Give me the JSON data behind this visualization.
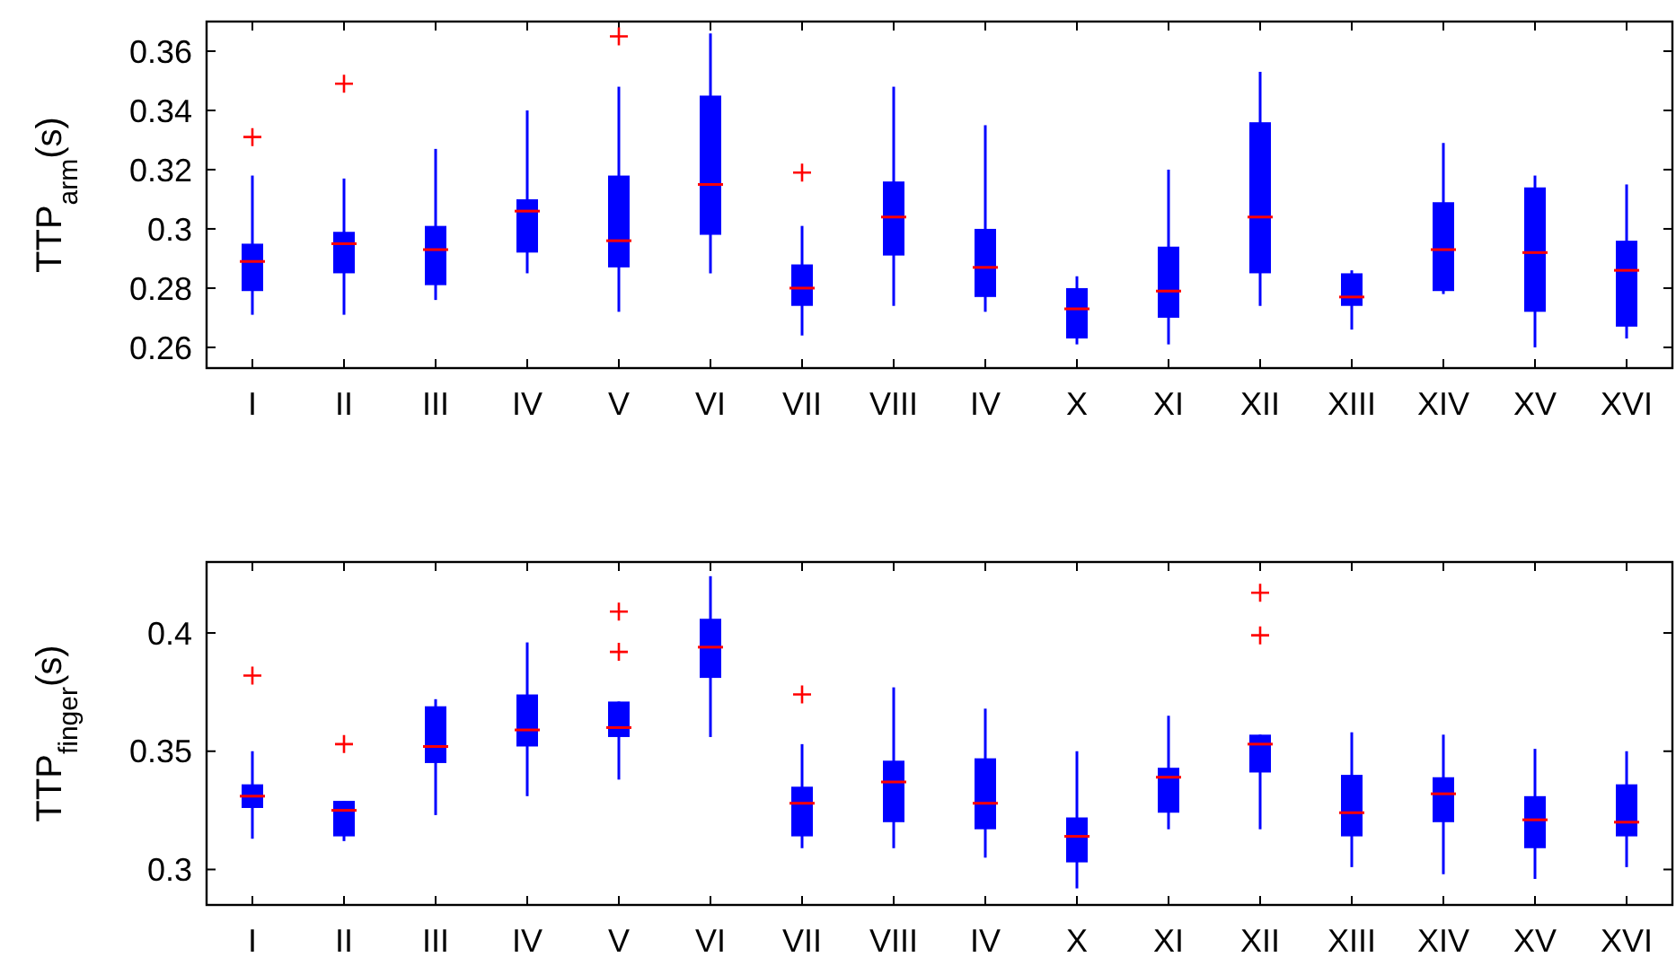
{
  "chart_data": [
    {
      "type": "box",
      "ylabel": "TTP$_{arm}$(s)",
      "categories": [
        "I",
        "II",
        "III",
        "IV",
        "V",
        "VI",
        "VII",
        "VIII",
        "IV",
        "X",
        "XI",
        "XII",
        "XIII",
        "XIV",
        "XV",
        "XVI"
      ],
      "ylim": [
        0.253,
        0.37
      ],
      "yticks": [
        {
          "value": 0.26,
          "label": "0.26"
        },
        {
          "value": 0.28,
          "label": "0.28"
        },
        {
          "value": 0.3,
          "label": "0.3"
        },
        {
          "value": 0.32,
          "label": "0.32"
        },
        {
          "value": 0.34,
          "label": "0.34"
        },
        {
          "value": 0.36,
          "label": "0.36"
        }
      ],
      "color": "#0000ff",
      "boxes": [
        {
          "low": 0.271,
          "q1": 0.279,
          "median": 0.289,
          "q3": 0.295,
          "high": 0.318,
          "outliers": [
            0.331
          ]
        },
        {
          "low": 0.271,
          "q1": 0.285,
          "median": 0.295,
          "q3": 0.299,
          "high": 0.317,
          "outliers": [
            0.349
          ]
        },
        {
          "low": 0.276,
          "q1": 0.281,
          "median": 0.293,
          "q3": 0.301,
          "high": 0.327
        },
        {
          "low": 0.285,
          "q1": 0.292,
          "median": 0.306,
          "q3": 0.31,
          "high": 0.34
        },
        {
          "low": 0.272,
          "q1": 0.287,
          "median": 0.296,
          "q3": 0.318,
          "high": 0.348,
          "outliers": [
            0.365
          ]
        },
        {
          "low": 0.285,
          "q1": 0.298,
          "median": 0.315,
          "q3": 0.345,
          "high": 0.366
        },
        {
          "low": 0.264,
          "q1": 0.274,
          "median": 0.28,
          "q3": 0.288,
          "high": 0.301,
          "outliers": [
            0.319
          ]
        },
        {
          "low": 0.274,
          "q1": 0.291,
          "median": 0.304,
          "q3": 0.316,
          "high": 0.348
        },
        {
          "low": 0.272,
          "q1": 0.277,
          "median": 0.287,
          "q3": 0.3,
          "high": 0.335
        },
        {
          "low": 0.261,
          "q1": 0.263,
          "median": 0.273,
          "q3": 0.28,
          "high": 0.284
        },
        {
          "low": 0.261,
          "q1": 0.27,
          "median": 0.279,
          "q3": 0.294,
          "high": 0.32
        },
        {
          "low": 0.274,
          "q1": 0.285,
          "median": 0.304,
          "q3": 0.336,
          "high": 0.353
        },
        {
          "low": 0.266,
          "q1": 0.274,
          "median": 0.277,
          "q3": 0.285,
          "high": 0.286
        },
        {
          "low": 0.278,
          "q1": 0.279,
          "median": 0.293,
          "q3": 0.309,
          "high": 0.329
        },
        {
          "low": 0.26,
          "q1": 0.272,
          "median": 0.292,
          "q3": 0.314,
          "high": 0.318
        },
        {
          "low": 0.263,
          "q1": 0.267,
          "median": 0.286,
          "q3": 0.296,
          "high": 0.315
        }
      ]
    },
    {
      "type": "box",
      "ylabel": "TTP$_{finger}$(s)",
      "categories": [
        "I",
        "II",
        "III",
        "IV",
        "V",
        "VI",
        "VII",
        "VIII",
        "IV",
        "X",
        "XI",
        "XII",
        "XIII",
        "XIV",
        "XV",
        "XVI"
      ],
      "ylim": [
        0.285,
        0.43
      ],
      "yticks": [
        {
          "value": 0.3,
          "label": "0.3"
        },
        {
          "value": 0.35,
          "label": "0.35"
        },
        {
          "value": 0.4,
          "label": "0.4"
        }
      ],
      "color": "#0000ff",
      "boxes": [
        {
          "low": 0.313,
          "q1": 0.326,
          "median": 0.331,
          "q3": 0.336,
          "high": 0.35,
          "outliers": [
            0.382
          ]
        },
        {
          "low": 0.312,
          "q1": 0.314,
          "median": 0.325,
          "q3": 0.329,
          "high": 0.329,
          "outliers": [
            0.353
          ]
        },
        {
          "low": 0.323,
          "q1": 0.345,
          "median": 0.352,
          "q3": 0.369,
          "high": 0.372
        },
        {
          "low": 0.331,
          "q1": 0.352,
          "median": 0.359,
          "q3": 0.374,
          "high": 0.396
        },
        {
          "low": 0.338,
          "q1": 0.356,
          "median": 0.36,
          "q3": 0.371,
          "high": 0.371,
          "outliers": [
            0.392,
            0.409
          ]
        },
        {
          "low": 0.356,
          "q1": 0.381,
          "median": 0.394,
          "q3": 0.406,
          "high": 0.424
        },
        {
          "low": 0.309,
          "q1": 0.314,
          "median": 0.328,
          "q3": 0.335,
          "high": 0.353,
          "outliers": [
            0.374
          ]
        },
        {
          "low": 0.309,
          "q1": 0.32,
          "median": 0.337,
          "q3": 0.346,
          "high": 0.377
        },
        {
          "low": 0.305,
          "q1": 0.317,
          "median": 0.328,
          "q3": 0.347,
          "high": 0.368
        },
        {
          "low": 0.292,
          "q1": 0.303,
          "median": 0.314,
          "q3": 0.322,
          "high": 0.35
        },
        {
          "low": 0.317,
          "q1": 0.324,
          "median": 0.339,
          "q3": 0.343,
          "high": 0.365
        },
        {
          "low": 0.317,
          "q1": 0.341,
          "median": 0.353,
          "q3": 0.357,
          "high": 0.357,
          "outliers": [
            0.399,
            0.417
          ]
        },
        {
          "low": 0.301,
          "q1": 0.314,
          "median": 0.324,
          "q3": 0.34,
          "high": 0.358
        },
        {
          "low": 0.298,
          "q1": 0.32,
          "median": 0.332,
          "q3": 0.339,
          "high": 0.357
        },
        {
          "low": 0.296,
          "q1": 0.309,
          "median": 0.321,
          "q3": 0.331,
          "high": 0.351
        },
        {
          "low": 0.301,
          "q1": 0.314,
          "median": 0.32,
          "q3": 0.336,
          "high": 0.35
        }
      ]
    }
  ]
}
